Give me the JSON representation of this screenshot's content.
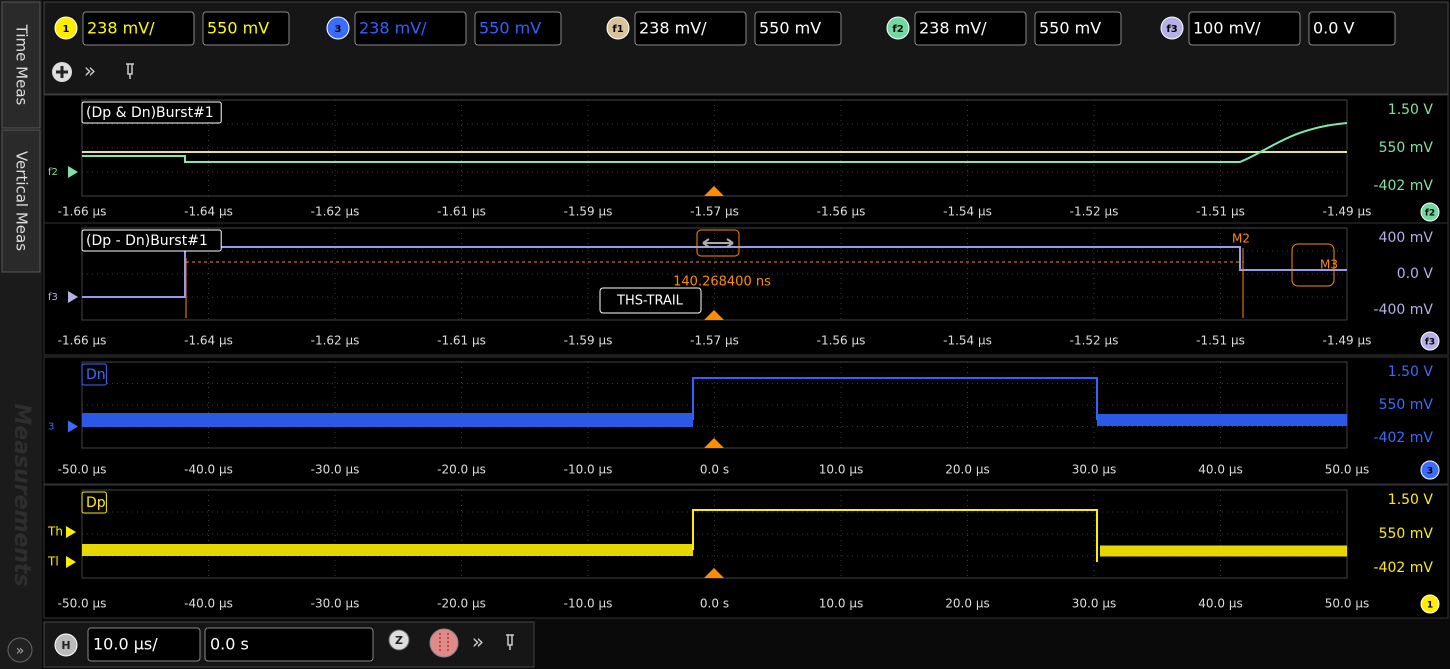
{
  "sidebar": {
    "tabs": [
      "Time Meas",
      "Vertical Meas",
      "Measurements"
    ]
  },
  "channels": [
    {
      "badge": "1",
      "scale": "238 mV/",
      "offset": "550 mV"
    },
    {
      "badge": "3",
      "scale": "238 mV/",
      "offset": "550 mV"
    },
    {
      "badge": "f1",
      "scale": "238 mV/",
      "offset": "550 mV"
    },
    {
      "badge": "f2",
      "scale": "238 mV/",
      "offset": "550 mV"
    },
    {
      "badge": "f3",
      "scale": "100 mV/",
      "offset": "0.0 V"
    }
  ],
  "panels": [
    {
      "label": "(Dp & Dn)Burst#1",
      "y_labels": [
        "1.50 V",
        "550 mV",
        "-402 mV"
      ],
      "x_labels": [
        "-1.66 µs",
        "-1.64 µs",
        "-1.62 µs",
        "-1.61 µs",
        "-1.59 µs",
        "-1.57 µs",
        "-1.56 µs",
        "-1.54 µs",
        "-1.52 µs",
        "-1.51 µs",
        "-1.49 µs"
      ],
      "badge": "f2",
      "markers": [
        "f2"
      ]
    },
    {
      "label": "(Dp - Dn)Burst#1",
      "y_labels": [
        "400 mV",
        "0.0 V",
        "-400 mV"
      ],
      "x_labels": [
        "-1.66 µs",
        "-1.64 µs",
        "-1.62 µs",
        "-1.61 µs",
        "-1.59 µs",
        "-1.57 µs",
        "-1.56 µs",
        "-1.54 µs",
        "-1.52 µs",
        "-1.51 µs",
        "-1.49 µs"
      ],
      "badge": "f3",
      "markers": [
        "f3"
      ],
      "annotations": {
        "delta": "140.268400 ns",
        "measurement": "THS-TRAIL",
        "cursors": [
          "M2",
          "M3"
        ]
      }
    },
    {
      "label": "Dn",
      "y_labels": [
        "1.50 V",
        "550 mV",
        "-402 mV"
      ],
      "x_labels": [
        "-50.0 µs",
        "-40.0 µs",
        "-30.0 µs",
        "-20.0 µs",
        "-10.0 µs",
        "0.0 s",
        "10.0 µs",
        "20.0 µs",
        "30.0 µs",
        "40.0 µs",
        "50.0 µs"
      ],
      "badge": "3",
      "markers": [
        "3"
      ]
    },
    {
      "label": "Dp",
      "y_labels": [
        "1.50 V",
        "550 mV",
        "-402 mV"
      ],
      "x_labels": [
        "-50.0 µs",
        "-40.0 µs",
        "-30.0 µs",
        "-20.0 µs",
        "-10.0 µs",
        "0.0 s",
        "10.0 µs",
        "20.0 µs",
        "30.0 µs",
        "40.0 µs",
        "50.0 µs"
      ],
      "badge": "1",
      "markers": [
        "Th",
        "Tl"
      ]
    }
  ],
  "horizontal": {
    "badge": "H",
    "scale": "10.0 µs/",
    "position": "0.0 s",
    "zoom": "Z"
  }
}
